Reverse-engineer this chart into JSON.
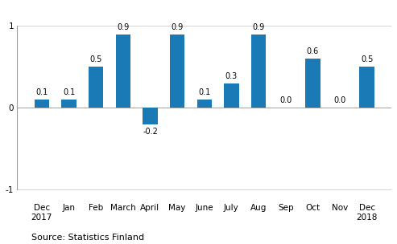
{
  "categories": [
    "Dec\n2017",
    "Jan",
    "Feb",
    "March",
    "April",
    "May",
    "June",
    "July",
    "Aug",
    "Sep",
    "Oct",
    "Nov",
    "Dec\n2018"
  ],
  "values": [
    0.1,
    0.1,
    0.5,
    0.9,
    -0.2,
    0.9,
    0.1,
    0.3,
    0.9,
    0.0,
    0.6,
    0.0,
    0.5
  ],
  "bar_color": "#1a7ab5",
  "ylim": [
    -1.15,
    1.25
  ],
  "yticks": [
    -1,
    0,
    1
  ],
  "source_text": "Source: Statistics Finland",
  "background_color": "#ffffff",
  "label_fontsize": 7.0,
  "tick_fontsize": 7.5,
  "source_fontsize": 8
}
